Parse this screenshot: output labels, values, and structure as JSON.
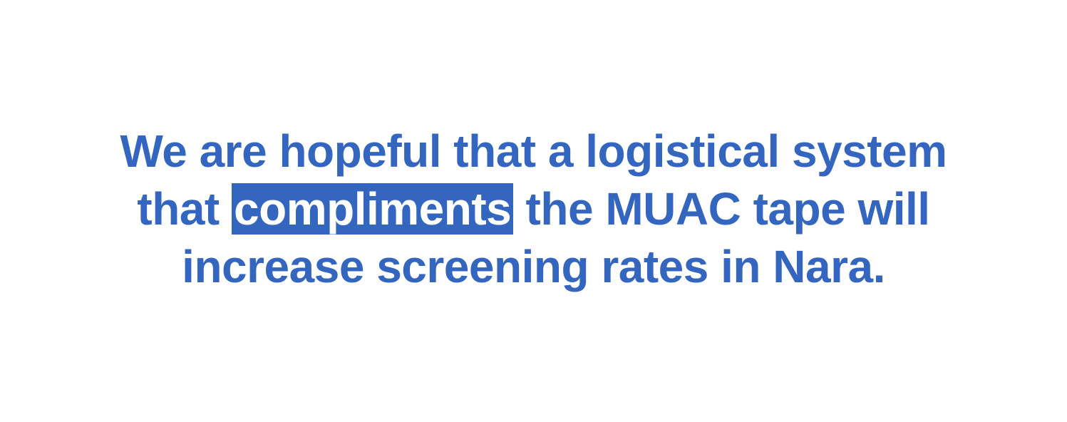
{
  "statement": {
    "line1": "We are hopeful that a logistical system",
    "line2_before": "that ",
    "line2_highlight": "compliments",
    "line2_after": " the MUAC tape will",
    "line3": "increase screening rates in Nara."
  },
  "colors": {
    "text": "#3566bf",
    "highlight_background": "#3566bf",
    "highlight_text": "#ffffff",
    "page_background": "#ffffff"
  }
}
